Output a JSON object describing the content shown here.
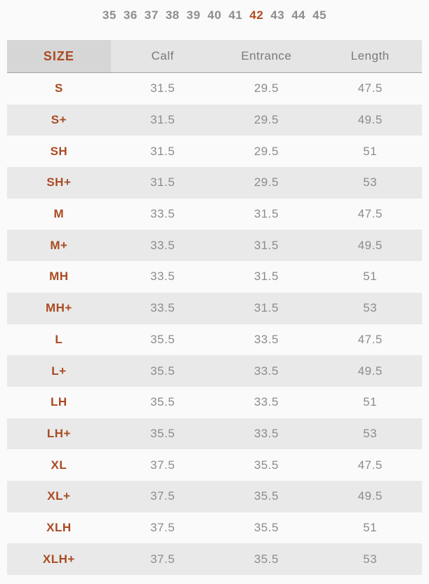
{
  "accent_color": "#a94b22",
  "text_gray": "#8c8c8c",
  "size_selector": {
    "options": [
      "35",
      "36",
      "37",
      "38",
      "39",
      "40",
      "41",
      "42",
      "43",
      "44",
      "45"
    ],
    "selected": "42"
  },
  "table": {
    "headers": [
      "SIZE",
      "Calf",
      "Entrance",
      "Length"
    ],
    "rows": [
      {
        "size": "S",
        "calf": "31.5",
        "entrance": "29.5",
        "length": "47.5"
      },
      {
        "size": "S+",
        "calf": "31.5",
        "entrance": "29.5",
        "length": "49.5"
      },
      {
        "size": "SH",
        "calf": "31.5",
        "entrance": "29.5",
        "length": "51"
      },
      {
        "size": "SH+",
        "calf": "31.5",
        "entrance": "29.5",
        "length": "53"
      },
      {
        "size": "M",
        "calf": "33.5",
        "entrance": "31.5",
        "length": "47.5"
      },
      {
        "size": "M+",
        "calf": "33.5",
        "entrance": "31.5",
        "length": "49.5"
      },
      {
        "size": "MH",
        "calf": "33.5",
        "entrance": "31.5",
        "length": "51"
      },
      {
        "size": "MH+",
        "calf": "33.5",
        "entrance": "31.5",
        "length": "53"
      },
      {
        "size": "L",
        "calf": "35.5",
        "entrance": "33.5",
        "length": "47.5"
      },
      {
        "size": "L+",
        "calf": "35.5",
        "entrance": "33.5",
        "length": "49.5"
      },
      {
        "size": "LH",
        "calf": "35.5",
        "entrance": "33.5",
        "length": "51"
      },
      {
        "size": "LH+",
        "calf": "35.5",
        "entrance": "33.5",
        "length": "53"
      },
      {
        "size": "XL",
        "calf": "37.5",
        "entrance": "35.5",
        "length": "47.5"
      },
      {
        "size": "XL+",
        "calf": "37.5",
        "entrance": "35.5",
        "length": "49.5"
      },
      {
        "size": "XLH",
        "calf": "37.5",
        "entrance": "35.5",
        "length": "51"
      },
      {
        "size": "XLH+",
        "calf": "37.5",
        "entrance": "35.5",
        "length": "53"
      }
    ]
  }
}
